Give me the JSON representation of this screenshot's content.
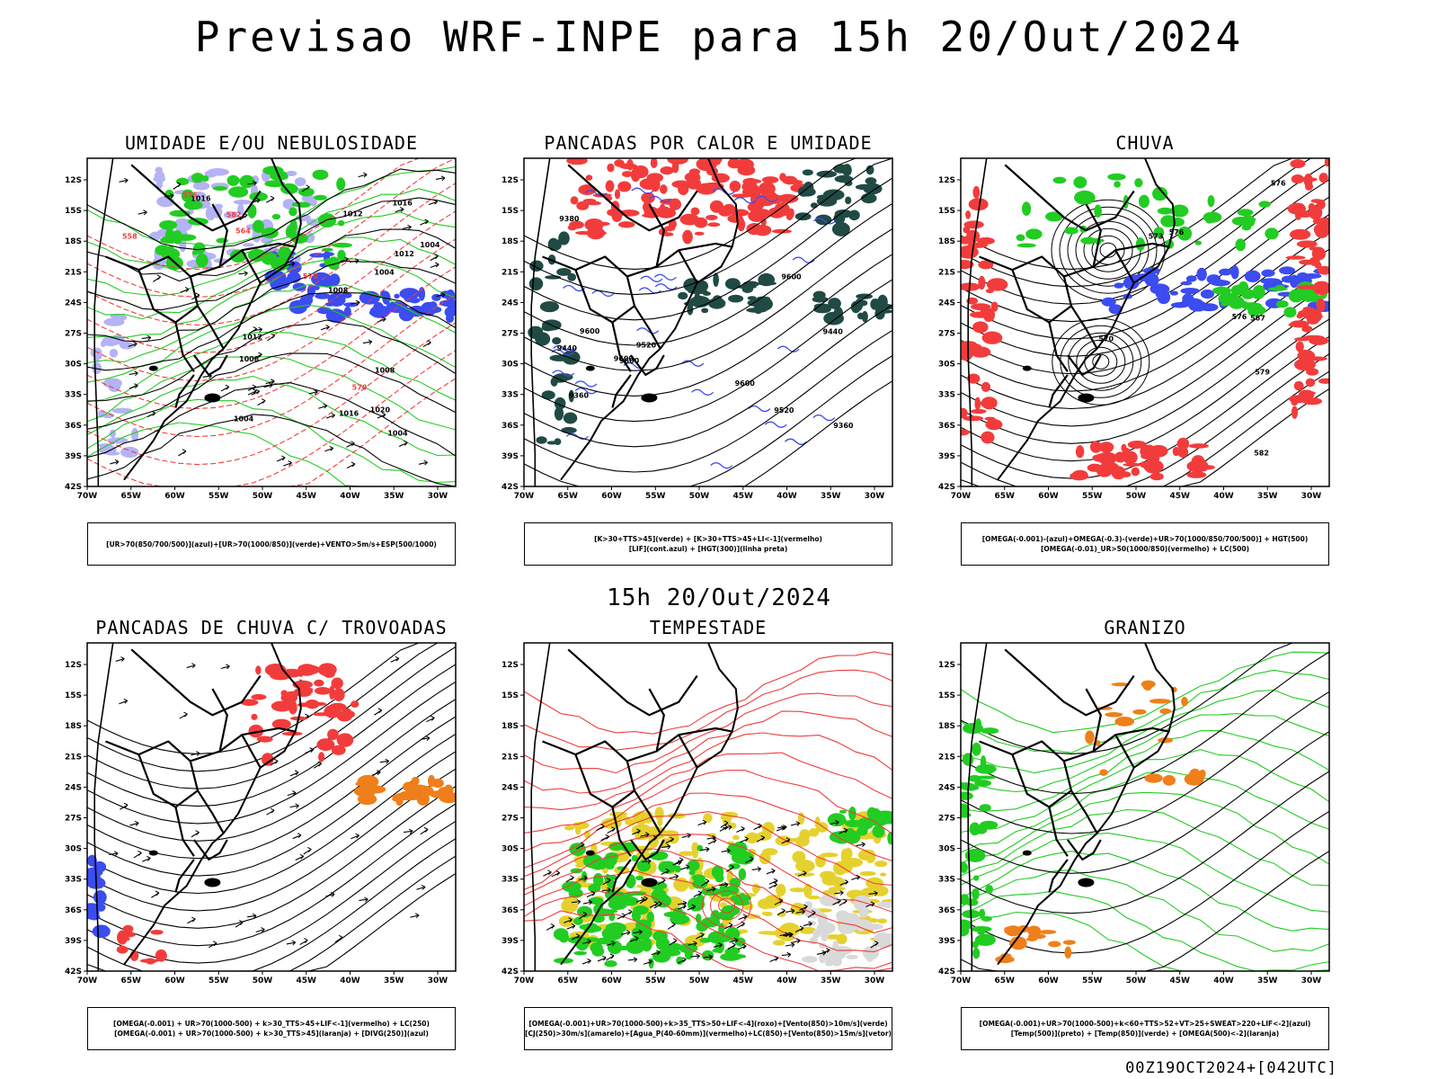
{
  "title": "Previsao WRF-INPE  para 15h 20/Out/2024",
  "subtitle": "15h 20/Out/2024",
  "footer": "00Z19OCT2024+[042UTC]",
  "lat_labels": [
    "12S",
    "15S",
    "18S",
    "21S",
    "24S",
    "27S",
    "30S",
    "33S",
    "36S",
    "39S",
    "42S"
  ],
  "lon_labels": [
    "70W",
    "65W",
    "60W",
    "55W",
    "50W",
    "45W",
    "40W",
    "35W",
    "30W"
  ],
  "colors": {
    "blue": "#3b4cf0",
    "lavender": "#b3b3f5",
    "green": "#22cc22",
    "red": "#f23c3c",
    "darkgreen": "#214a45",
    "yellow": "#e5d12e",
    "orange": "#ef7f1a",
    "lightgray": "#d9d9d9"
  },
  "panels": [
    {
      "key": "umidade",
      "title": "UMIDADE E/OU NEBULOSIDADE",
      "legend": [
        "[UR>70(850/700/500)](azul)+[UR>70(1000/850)](verde)+VENTO>5m/s+ESP(500/1000)"
      ],
      "contour_labels": [
        "1004",
        "1004",
        "1008",
        "1012",
        "1016",
        "1008",
        "1012",
        "1016",
        "1020",
        "1016",
        "1004",
        "1008",
        "1012",
        "1004"
      ],
      "red_labels": [
        "570",
        "576",
        "582",
        "564",
        "558",
        "570"
      ]
    },
    {
      "key": "pancadas_calor",
      "title": "PANCADAS POR CALOR E UMIDADE",
      "legend": [
        "[K>30+TTS>45](verde) + [K>30+TTS>45+LI<-1](vermelho)",
        "[LIF](cont.azul) + [HGT(300)](linha preta)"
      ],
      "contour_labels": [
        "9600",
        "9600",
        "9600",
        "9600",
        "9520",
        "9600",
        "9520",
        "9440",
        "9360",
        "9440",
        "9380",
        "9360"
      ],
      "red_labels": []
    },
    {
      "key": "chuva",
      "title": "CHUVA",
      "legend": [
        "[OMEGA(-0.001)-(azul)+OMEGA(-0.3)-(verde)+UR>70(1000/850/700/500)] + HGT(500)",
        "[OMEGA(-0.01)_UR>50(1000/850)(vermelho) + LC(500)"
      ],
      "contour_labels": [
        "582",
        "576",
        "573",
        "576",
        "570",
        "579",
        "567",
        "576"
      ],
      "red_labels": []
    },
    {
      "key": "pancadas_trovoadas",
      "title": "PANCADAS DE CHUVA C/ TROVOADAS",
      "legend": [
        "[OMEGA(-0.001) + UR>70(1000-500) + k>30_TTS>45+LIF<-1](vermelho) + LC(250)",
        "[OMEGA(-0.001) + UR>70(1000-500) + k>30_TTS>45](laranja) + [DIVG(250)](azul)"
      ],
      "contour_labels": [],
      "red_labels": []
    },
    {
      "key": "tempestade",
      "title": "TEMPESTADE",
      "legend": [
        "[OMEGA(-0.001)+UR>70(1000-500)+k>35_TTS>50+LIF<-4](roxo)+[Vento(850)>10m/s](verde)",
        "[CJ(250)>30m/s](amarelo)+[Agua_P(40-60mm)](vermelho)+LC(850)+[Vento(850)>15m/s](vetor)"
      ],
      "contour_labels": [],
      "red_labels": []
    },
    {
      "key": "granizo",
      "title": "GRANIZO",
      "legend": [
        "[OMEGA(-0.001)+UR>70(1000-500)+k<60+TTS>52+VT>25+SWEAT>220+LIF<-2](azul)",
        "[Temp(500)](preto) + [Temp(850)](verde) + [OMEGA(500)<-2](laranja)"
      ],
      "contour_labels": [],
      "red_labels": []
    }
  ]
}
